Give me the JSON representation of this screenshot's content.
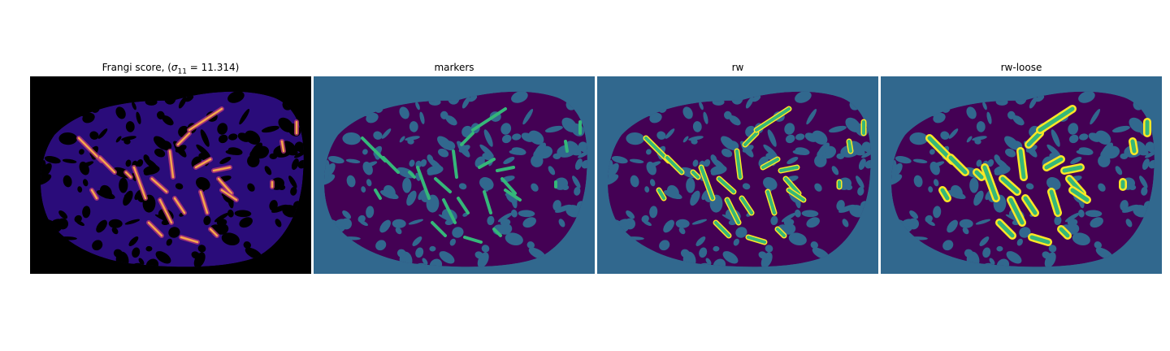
{
  "panels": [
    {
      "title_prefix": "Frangi score, (",
      "title_symbol": "σ",
      "title_subscript": "11",
      "title_suffix": " = 11.314)",
      "colormap": "magma",
      "background_color": "#000000",
      "blob_color": "#2a0c7a",
      "highlight_color": "#f6a64c"
    },
    {
      "title": "markers",
      "background_color": "#31688e",
      "blob_color": "#440154",
      "marker_color": "#35b779"
    },
    {
      "title": "rw",
      "background_color": "#31688e",
      "blob_color": "#440154",
      "marker_color": "#35b779",
      "segment_color": "#fde725"
    },
    {
      "title": "rw-loose",
      "background_color": "#31688e",
      "blob_color": "#440154",
      "marker_color": "#35b779",
      "segment_color": "#fde725"
    }
  ]
}
